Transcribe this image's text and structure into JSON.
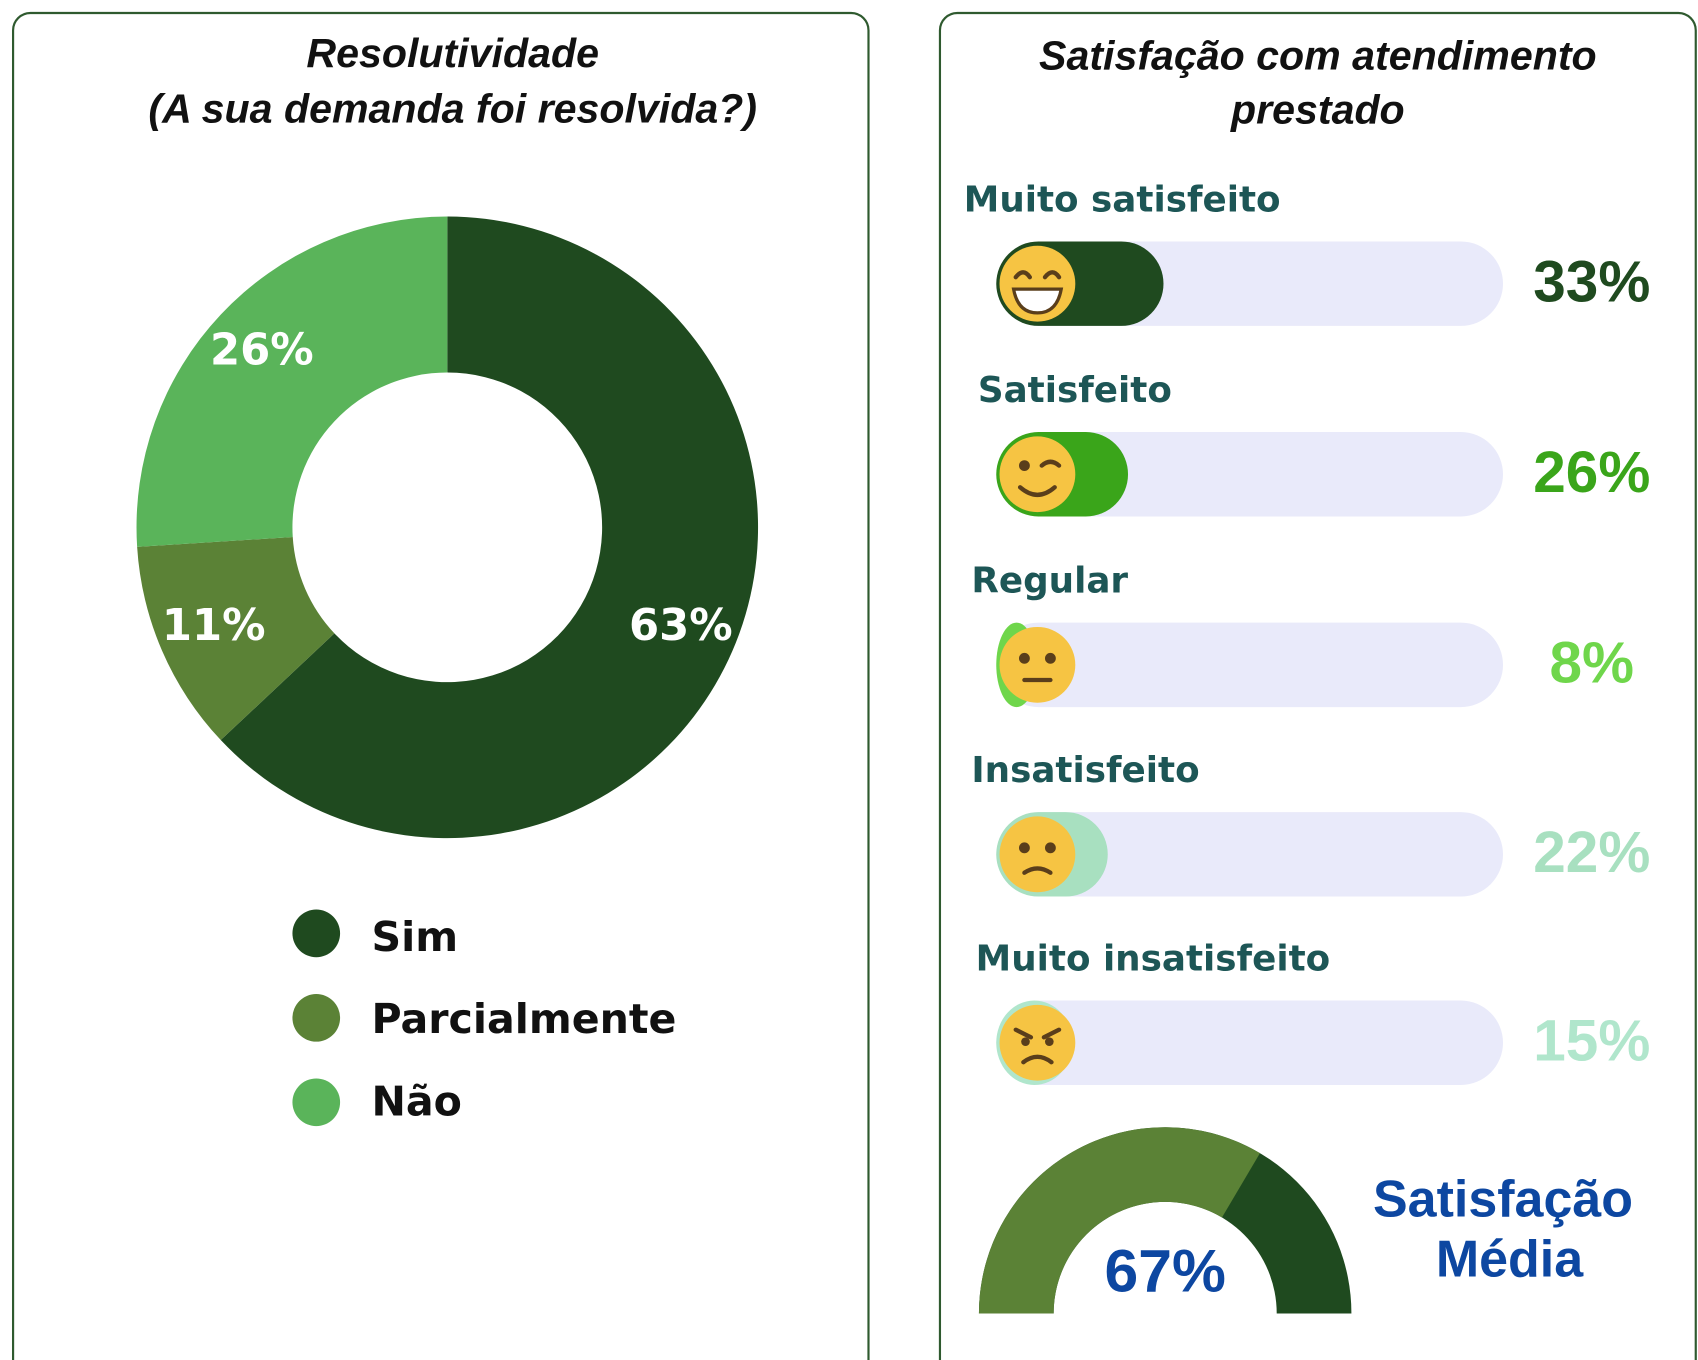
{
  "chart_data": [
    {
      "type": "donut",
      "title": [
        "Resolutividade",
        "(A sua demanda foi resolvida?)"
      ],
      "categories": [
        "Sim",
        "Parcialmente",
        "Não"
      ],
      "values": [
        63,
        11,
        26
      ],
      "value_labels": [
        "63%",
        "11%",
        "26%"
      ],
      "colors": [
        "#1f4a1f",
        "#5b8236",
        "#5ab45a"
      ]
    },
    {
      "type": "hbar",
      "title": [
        "Satisfação com atendimento",
        "prestado"
      ],
      "categories": [
        "Muito satisfeito",
        "Satisfeito",
        "Regular",
        "Insatisfeito",
        "Muito insatisfeito"
      ],
      "values": [
        33,
        26,
        8,
        22,
        15
      ],
      "value_labels": [
        "33%",
        "26%",
        "8%",
        "22%",
        "15%"
      ],
      "colors": [
        "#1f4a1f",
        "#3aa51a",
        "#6fd64b",
        "#a8e0c0",
        "#b0e6cc"
      ],
      "xlim": [
        0,
        100
      ]
    },
    {
      "type": "gauge",
      "title": [
        "Satisfação",
        "Média"
      ],
      "value": 67,
      "value_label": "67%",
      "ylim": [
        0,
        100
      ],
      "colors": [
        "#5b8236",
        "#1f4a1f"
      ]
    }
  ]
}
